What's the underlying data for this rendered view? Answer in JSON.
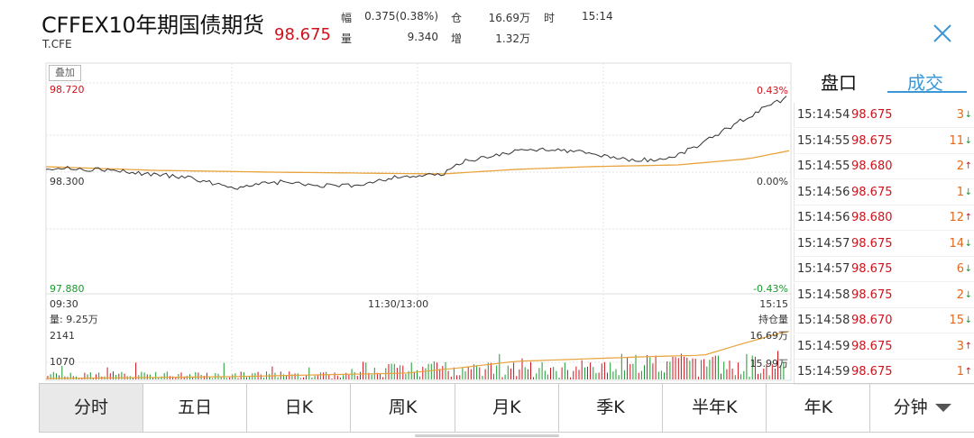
{
  "header": {
    "title": "CFFEX10年期国债期货",
    "code": "T.CFE",
    "price": "98.675",
    "stats": {
      "change_label": "幅",
      "change_value": "0.375(0.38%)",
      "volume_label": "量",
      "volume_value": "9.340",
      "oi_label": "仓",
      "oi_value": "16.69万",
      "oi_change_label": "增",
      "oi_change_value": "1.32万",
      "time_label": "时",
      "time_value": "15:14"
    }
  },
  "chart": {
    "overlay_label": "叠加",
    "price_high": "98.720",
    "price_mid": "98.300",
    "price_low": "97.880",
    "pct_high": "0.43%",
    "pct_mid": "0.00%",
    "pct_low": "-0.43%",
    "time_start": "09:30",
    "time_mid": "11:30/13:00",
    "time_end": "15:15",
    "volume_label": "量: 9.25万",
    "vol_top": "2141",
    "vol_mid": "1070",
    "oi_axis_label": "持仓量",
    "oi_high": "16.69万",
    "oi_low": "15.99万",
    "colors": {
      "price_line": "#333333",
      "avg_line": "#e8a33c",
      "up": "#d0121b",
      "down": "#1a9a2e"
    }
  },
  "panel": {
    "tab_orderbook": "盘口",
    "tab_trades": "成交",
    "trades": [
      {
        "time": "15:14:54",
        "price": "98.675",
        "vol": "3",
        "dir": "dn"
      },
      {
        "time": "15:14:55",
        "price": "98.675",
        "vol": "11",
        "dir": "dn"
      },
      {
        "time": "15:14:55",
        "price": "98.680",
        "vol": "2",
        "dir": "up"
      },
      {
        "time": "15:14:56",
        "price": "98.675",
        "vol": "1",
        "dir": "dn"
      },
      {
        "time": "15:14:56",
        "price": "98.680",
        "vol": "12",
        "dir": "up"
      },
      {
        "time": "15:14:57",
        "price": "98.675",
        "vol": "14",
        "dir": "dn"
      },
      {
        "time": "15:14:57",
        "price": "98.675",
        "vol": "6",
        "dir": "dn"
      },
      {
        "time": "15:14:58",
        "price": "98.675",
        "vol": "2",
        "dir": "dn"
      },
      {
        "time": "15:14:58",
        "price": "98.670",
        "vol": "15",
        "dir": "dn"
      },
      {
        "time": "15:14:59",
        "price": "98.675",
        "vol": "3",
        "dir": "up"
      },
      {
        "time": "15:14:59",
        "price": "98.675",
        "vol": "1",
        "dir": "up"
      }
    ],
    "arrow_up": "↑",
    "arrow_down": "↓"
  },
  "tabs": [
    "分时",
    "五日",
    "日K",
    "周K",
    "月K",
    "季K",
    "半年K",
    "年K",
    "分钟"
  ],
  "active_tab": 0
}
